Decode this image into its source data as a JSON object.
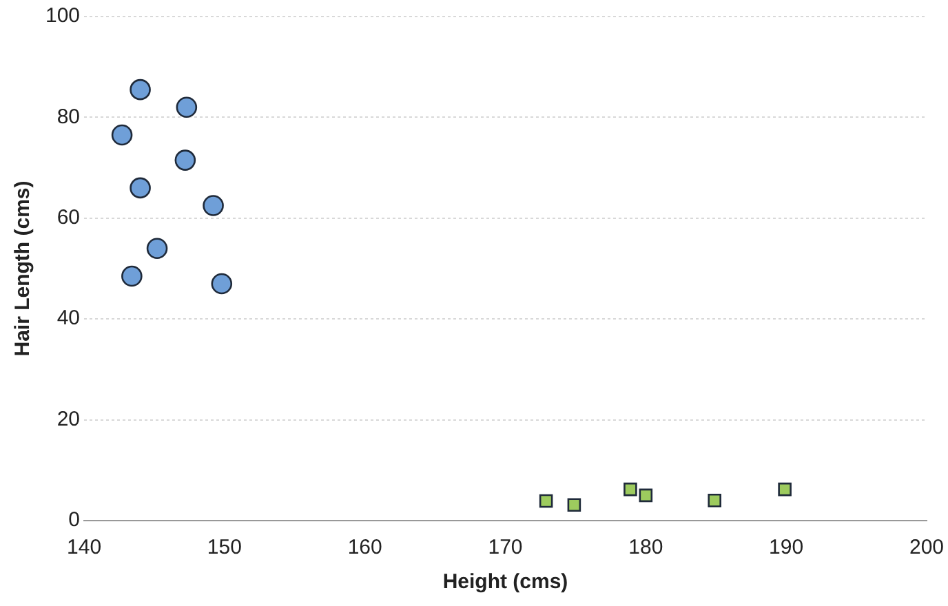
{
  "chart_data": {
    "type": "scatter",
    "xlabel": "Height (cms)",
    "ylabel": "Hair Length (cms)",
    "xlim": [
      140,
      200
    ],
    "xticks": [
      140,
      150,
      160,
      170,
      180,
      190,
      200
    ],
    "ylim": [
      0,
      100
    ],
    "yticks": [
      0,
      20,
      40,
      60,
      80,
      100
    ],
    "grid": "y",
    "legend": false,
    "series": [
      {
        "color": "#6f9fd8",
        "marker": "circle",
        "x": [
          144,
          147.3,
          142.7,
          147.2,
          144,
          149.2,
          145.2,
          143.4,
          149.8
        ],
        "values": [
          85.5,
          82,
          76.5,
          71.5,
          66,
          62.5,
          54,
          48.5,
          47
        ]
      },
      {
        "color": "#9dcb5e",
        "marker": "square",
        "x": [
          172.9,
          174.9,
          178.9,
          180,
          184.9,
          189.9
        ],
        "values": [
          3.9,
          3.1,
          6.2,
          5,
          4,
          6.2
        ]
      }
    ]
  }
}
